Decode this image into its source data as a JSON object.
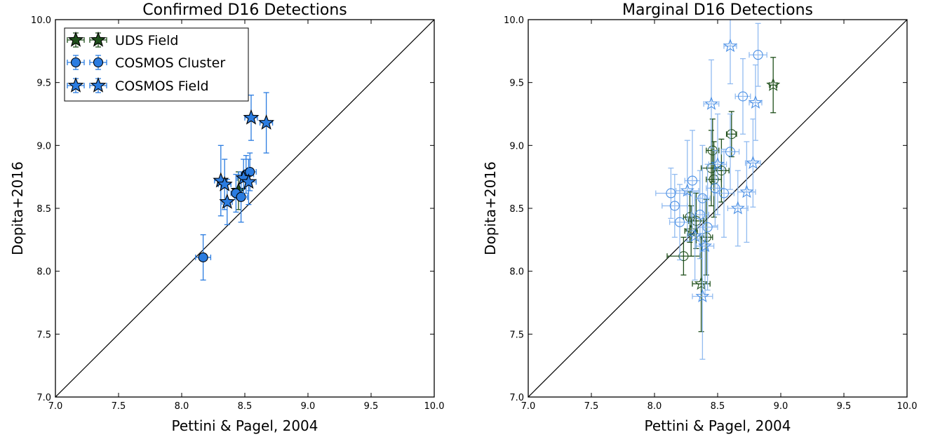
{
  "colors": {
    "uds": "#1f4f1b",
    "cosmos": "#2b7ce0",
    "errbar_light": "#7fb0ee"
  },
  "chart_data": [
    {
      "type": "scatter",
      "title": "Confirmed D16 Detections",
      "xlabel": "Pettini & Pagel, 2004",
      "ylabel": "Dopita+2016",
      "xlim": [
        7.0,
        10.0
      ],
      "ylim": [
        7.0,
        10.0
      ],
      "xticks": [
        "7.0",
        "7.5",
        "8.0",
        "8.5",
        "9.0",
        "9.5",
        "10.0"
      ],
      "yticks": [
        "7.0",
        "7.5",
        "8.0",
        "8.5",
        "9.0",
        "9.5",
        "10.0"
      ],
      "grid": false,
      "one_to_one_line": true,
      "legend": {
        "position": "top-left",
        "entries": [
          {
            "label": "UDS Field",
            "marker": "star",
            "color": "#1f4f1b"
          },
          {
            "label": "COSMOS Cluster",
            "marker": "circle",
            "color": "#2b7ce0"
          },
          {
            "label": "COSMOS Field",
            "marker": "star",
            "color": "#2b7ce0"
          }
        ]
      },
      "series": [
        {
          "name": "UDS Field",
          "marker": "star",
          "filled": true,
          "points": [
            {
              "x": 8.45,
              "y": 8.64,
              "xerr": 0.04,
              "yerr": 0.15
            }
          ]
        },
        {
          "name": "COSMOS Cluster",
          "marker": "circle",
          "filled": true,
          "points": [
            {
              "x": 8.17,
              "y": 8.11,
              "xerr": 0.06,
              "yerr": 0.18
            },
            {
              "x": 8.43,
              "y": 8.62,
              "xerr": 0.04,
              "yerr": 0.15
            },
            {
              "x": 8.47,
              "y": 8.59,
              "xerr": 0.05,
              "yerr": 0.2
            },
            {
              "x": 8.51,
              "y": 8.77,
              "xerr": 0.06,
              "yerr": 0.15
            },
            {
              "x": 8.54,
              "y": 8.79,
              "xerr": 0.05,
              "yerr": 0.15
            }
          ]
        },
        {
          "name": "COSMOS Field",
          "marker": "star",
          "filled": true,
          "points": [
            {
              "x": 8.31,
              "y": 8.72,
              "xerr": 0.05,
              "yerr": 0.28
            },
            {
              "x": 8.34,
              "y": 8.69,
              "xerr": 0.05,
              "yerr": 0.2
            },
            {
              "x": 8.36,
              "y": 8.55,
              "xerr": 0.04,
              "yerr": 0.18
            },
            {
              "x": 8.49,
              "y": 8.74,
              "xerr": 0.05,
              "yerr": 0.15
            },
            {
              "x": 8.53,
              "y": 8.71,
              "xerr": 0.06,
              "yerr": 0.18
            },
            {
              "x": 8.55,
              "y": 9.22,
              "xerr": 0.05,
              "yerr": 0.18
            },
            {
              "x": 8.67,
              "y": 9.18,
              "xerr": 0.05,
              "yerr": 0.24
            }
          ]
        }
      ]
    },
    {
      "type": "scatter",
      "title": "Marginal D16 Detections",
      "xlabel": "Pettini & Pagel, 2004",
      "ylabel": "Dopita+2016",
      "xlim": [
        7.0,
        10.0
      ],
      "ylim": [
        7.0,
        10.0
      ],
      "xticks": [
        "7.0",
        "7.5",
        "8.0",
        "8.5",
        "9.0",
        "9.5",
        "10.0"
      ],
      "yticks": [
        "7.0",
        "7.5",
        "8.0",
        "8.5",
        "9.0",
        "9.5",
        "10.0"
      ],
      "grid": false,
      "one_to_one_line": true,
      "series": [
        {
          "name": "UDS Field",
          "marker": "circle",
          "filled": false,
          "points": [
            {
              "x": 8.23,
              "y": 8.12,
              "xerr": 0.13,
              "yerr": 0.15
            },
            {
              "x": 8.28,
              "y": 8.43,
              "xerr": 0.05,
              "yerr": 0.2
            },
            {
              "x": 8.33,
              "y": 8.4,
              "xerr": 0.06,
              "yerr": 0.22
            },
            {
              "x": 8.41,
              "y": 8.27,
              "xerr": 0.05,
              "yerr": 0.3
            },
            {
              "x": 8.45,
              "y": 8.82,
              "xerr": 0.08,
              "yerr": 0.3
            },
            {
              "x": 8.46,
              "y": 8.96,
              "xerr": 0.05,
              "yerr": 0.25
            },
            {
              "x": 8.47,
              "y": 8.73,
              "xerr": 0.06,
              "yerr": 0.3
            },
            {
              "x": 8.53,
              "y": 8.8,
              "xerr": 0.06,
              "yerr": 0.25
            },
            {
              "x": 8.61,
              "y": 9.09,
              "xerr": 0.04,
              "yerr": 0.18
            }
          ]
        },
        {
          "name": "UDS Field",
          "marker": "star",
          "filled": false,
          "points": [
            {
              "x": 8.29,
              "y": 8.32,
              "xerr": 0.05,
              "yerr": 0.2
            },
            {
              "x": 8.37,
              "y": 7.9,
              "xerr": 0.07,
              "yerr": 0.38
            },
            {
              "x": 8.94,
              "y": 9.48,
              "xerr": 0.03,
              "yerr": 0.22
            }
          ]
        },
        {
          "name": "COSMOS Field",
          "marker": "circle",
          "filled": false,
          "points": [
            {
              "x": 8.13,
              "y": 8.62,
              "xerr": 0.12,
              "yerr": 0.2
            },
            {
              "x": 8.16,
              "y": 8.52,
              "xerr": 0.1,
              "yerr": 0.25
            },
            {
              "x": 8.2,
              "y": 8.39,
              "xerr": 0.08,
              "yerr": 0.3
            },
            {
              "x": 8.3,
              "y": 8.72,
              "xerr": 0.06,
              "yerr": 0.4
            },
            {
              "x": 8.36,
              "y": 8.45,
              "xerr": 0.07,
              "yerr": 0.35
            },
            {
              "x": 8.38,
              "y": 8.58,
              "xerr": 0.06,
              "yerr": 0.42
            },
            {
              "x": 8.42,
              "y": 8.35,
              "xerr": 0.08,
              "yerr": 0.5
            },
            {
              "x": 8.48,
              "y": 8.66,
              "xerr": 0.07,
              "yerr": 0.3
            },
            {
              "x": 8.55,
              "y": 8.62,
              "xerr": 0.08,
              "yerr": 0.35
            },
            {
              "x": 8.6,
              "y": 8.95,
              "xerr": 0.07,
              "yerr": 0.3
            },
            {
              "x": 8.7,
              "y": 9.39,
              "xerr": 0.06,
              "yerr": 0.3
            },
            {
              "x": 8.82,
              "y": 9.72,
              "xerr": 0.07,
              "yerr": 0.25
            }
          ]
        },
        {
          "name": "COSMOS Field",
          "marker": "star",
          "filled": false,
          "points": [
            {
              "x": 8.26,
              "y": 8.64,
              "xerr": 0.09,
              "yerr": 0.4
            },
            {
              "x": 8.32,
              "y": 8.28,
              "xerr": 0.06,
              "yerr": 0.35
            },
            {
              "x": 8.38,
              "y": 7.8,
              "xerr": 0.08,
              "yerr": 0.5
            },
            {
              "x": 8.4,
              "y": 8.2,
              "xerr": 0.07,
              "yerr": 0.4
            },
            {
              "x": 8.45,
              "y": 9.33,
              "xerr": 0.06,
              "yerr": 0.35
            },
            {
              "x": 8.5,
              "y": 8.85,
              "xerr": 0.07,
              "yerr": 0.4
            },
            {
              "x": 8.6,
              "y": 9.79,
              "xerr": 0.05,
              "yerr": 0.3
            },
            {
              "x": 8.73,
              "y": 8.63,
              "xerr": 0.07,
              "yerr": 0.4
            },
            {
              "x": 8.78,
              "y": 8.86,
              "xerr": 0.06,
              "yerr": 0.35
            },
            {
              "x": 8.8,
              "y": 9.34,
              "xerr": 0.05,
              "yerr": 0.3
            },
            {
              "x": 8.66,
              "y": 8.5,
              "xerr": 0.08,
              "yerr": 0.3
            }
          ]
        }
      ]
    }
  ]
}
